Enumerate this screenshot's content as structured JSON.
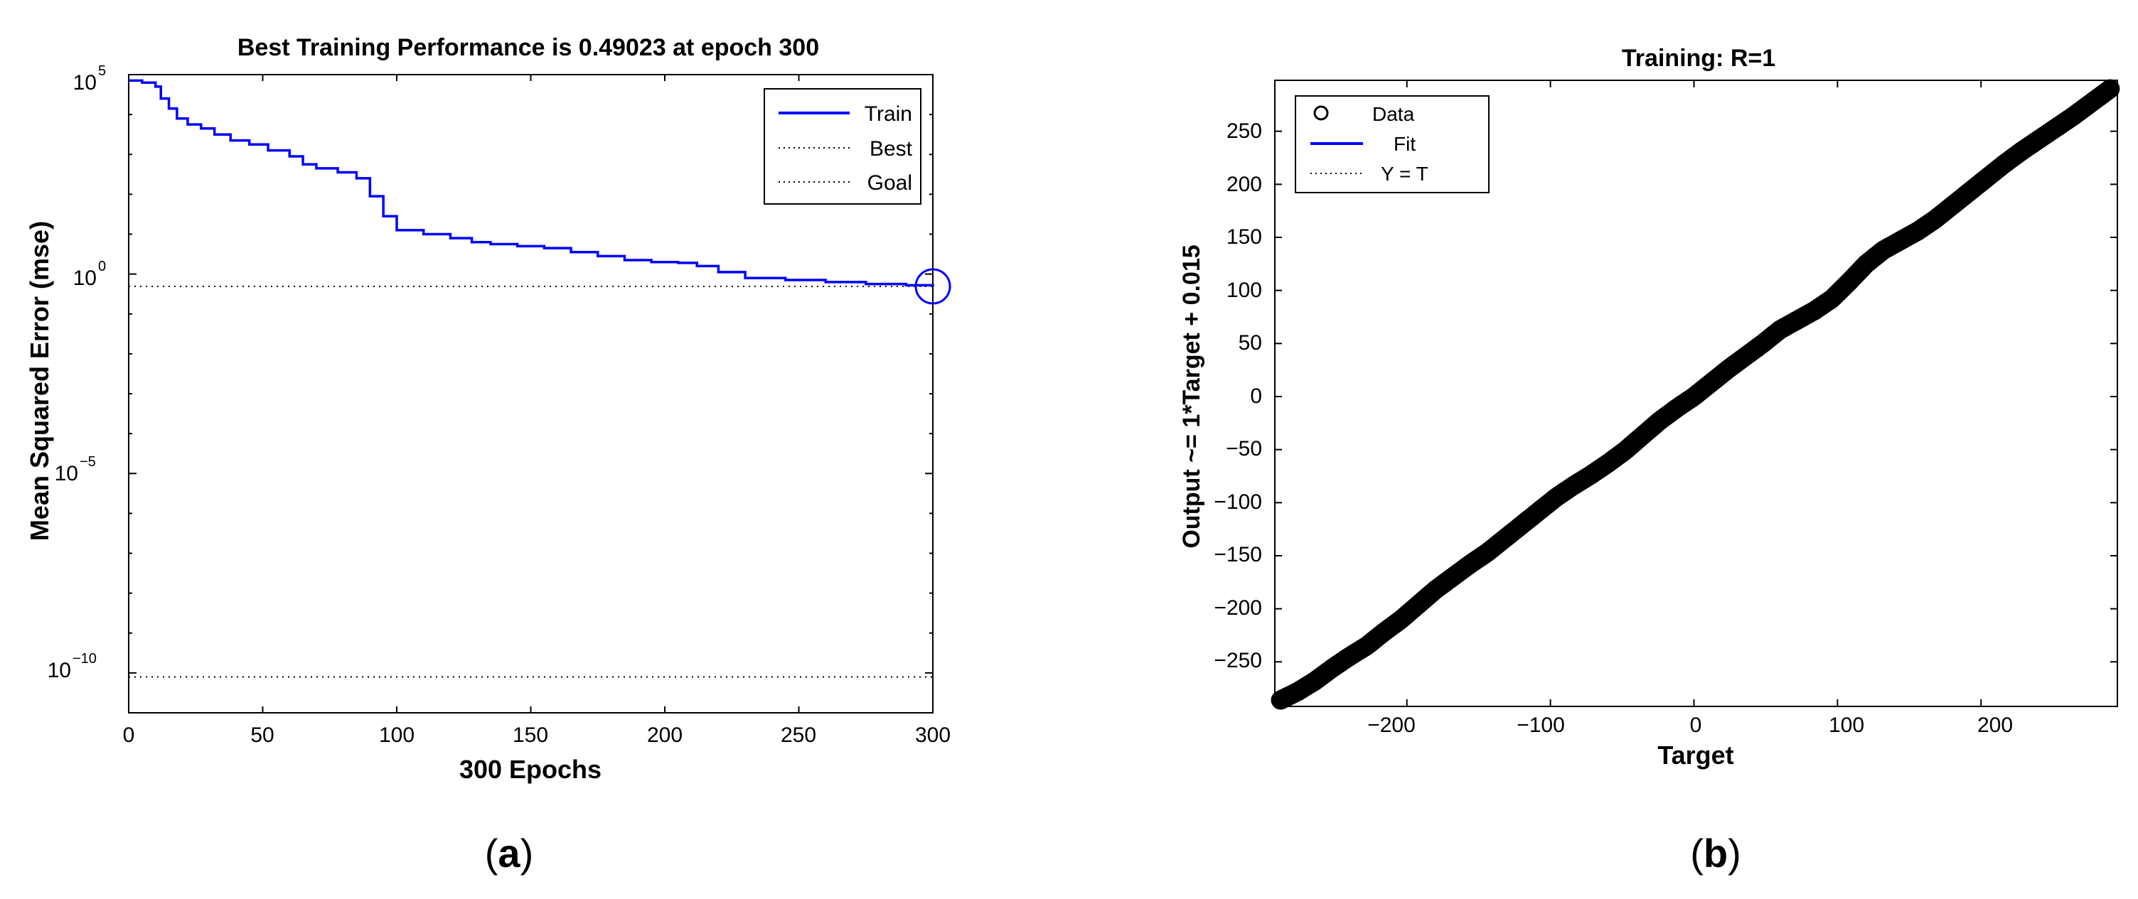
{
  "panels": [
    {
      "label": "(a)",
      "label_letter": "a"
    },
    {
      "label": "(b)",
      "label_letter": "b"
    }
  ],
  "chart_data": [
    {
      "type": "line",
      "title": "Best Training Performance is 0.49023 at epoch 300",
      "xlabel": "300 Epochs",
      "ylabel": "Mean Squared Error  (mse)",
      "xlim": [
        0,
        300
      ],
      "ylim_log10": [
        -11,
        5
      ],
      "yscale": "log",
      "x_ticks": [
        "0",
        "50",
        "100",
        "150",
        "200",
        "250",
        "300"
      ],
      "y_ticks": [
        {
          "base": "10",
          "exp": "5"
        },
        {
          "base": "10",
          "exp": "0"
        },
        {
          "base": "10",
          "exp": "−5"
        },
        {
          "base": "10",
          "exp": "−10"
        }
      ],
      "legend": {
        "placement": "top-right",
        "entries": [
          {
            "name": "Train",
            "style": "solid",
            "color": "#0000ff"
          },
          {
            "name": "Best",
            "style": "dotted",
            "color": "#000000"
          },
          {
            "name": "Goal",
            "style": "dotted",
            "color": "#000000"
          }
        ]
      },
      "series": [
        {
          "name": "Train",
          "color": "#0000ff",
          "x": [
            0,
            5,
            10,
            12,
            15,
            18,
            22,
            27,
            32,
            38,
            45,
            52,
            60,
            65,
            70,
            78,
            85,
            90,
            95,
            100,
            110,
            120,
            128,
            135,
            145,
            155,
            165,
            175,
            185,
            195,
            205,
            212,
            220,
            230,
            245,
            260,
            275,
            290,
            300
          ],
          "log10_y": [
            4.85,
            4.8,
            4.7,
            4.4,
            4.15,
            3.9,
            3.75,
            3.65,
            3.5,
            3.35,
            3.25,
            3.1,
            2.95,
            2.75,
            2.65,
            2.55,
            2.4,
            1.95,
            1.45,
            1.1,
            1.0,
            0.9,
            0.8,
            0.75,
            0.7,
            0.65,
            0.55,
            0.45,
            0.35,
            0.3,
            0.28,
            0.2,
            0.05,
            -0.1,
            -0.15,
            -0.2,
            -0.25,
            -0.28,
            -0.31
          ]
        }
      ],
      "best": {
        "epoch": 300,
        "value": 0.49023
      },
      "goal_log10": -10.1
    },
    {
      "type": "scatter",
      "title": "Training: R=1",
      "xlabel": "Target",
      "ylabel": "Output ~= 1*Target + 0.015",
      "xlim": [
        -292,
        295
      ],
      "ylim": [
        -292,
        298
      ],
      "x_ticks": [
        "−200",
        "−100",
        "0",
        "100",
        "200"
      ],
      "y_ticks": [
        "250",
        "200",
        "150",
        "100",
        "50",
        "0",
        "−50",
        "−100",
        "−150",
        "−200",
        "−250"
      ],
      "grid": false,
      "legend": {
        "placement": "top-left",
        "entries": [
          {
            "name": "Data",
            "marker": "circle",
            "color": "#000000"
          },
          {
            "name": "Fit",
            "style": "solid",
            "color": "#0000ff"
          },
          {
            "name": "Y = T",
            "style": "dotted",
            "color": "#000000"
          }
        ]
      },
      "fit": {
        "slope": 1,
        "intercept": 0.015
      },
      "series": [
        {
          "name": "Data",
          "color": "#000000",
          "x": [
            -288,
            -276,
            -264,
            -252,
            -240,
            -228,
            -216,
            -204,
            -192,
            -180,
            -168,
            -156,
            -144,
            -132,
            -120,
            -108,
            -96,
            -84,
            -72,
            -60,
            -48,
            -36,
            -24,
            -12,
            0,
            12,
            24,
            36,
            48,
            60,
            72,
            84,
            96,
            108,
            120,
            132,
            144,
            156,
            168,
            180,
            192,
            204,
            216,
            228,
            240,
            252,
            264,
            276,
            290
          ],
          "y": [
            -286,
            -278,
            -268,
            -256,
            -245,
            -235,
            -222,
            -210,
            -196,
            -182,
            -170,
            -158,
            -147,
            -134,
            -121,
            -108,
            -95,
            -84,
            -74,
            -63,
            -51,
            -37,
            -23,
            -11,
            0,
            13,
            26,
            38,
            50,
            63,
            72,
            81,
            92,
            108,
            125,
            138,
            147,
            156,
            167,
            180,
            193,
            206,
            219,
            231,
            242,
            253,
            264,
            276,
            290
          ]
        }
      ]
    }
  ]
}
